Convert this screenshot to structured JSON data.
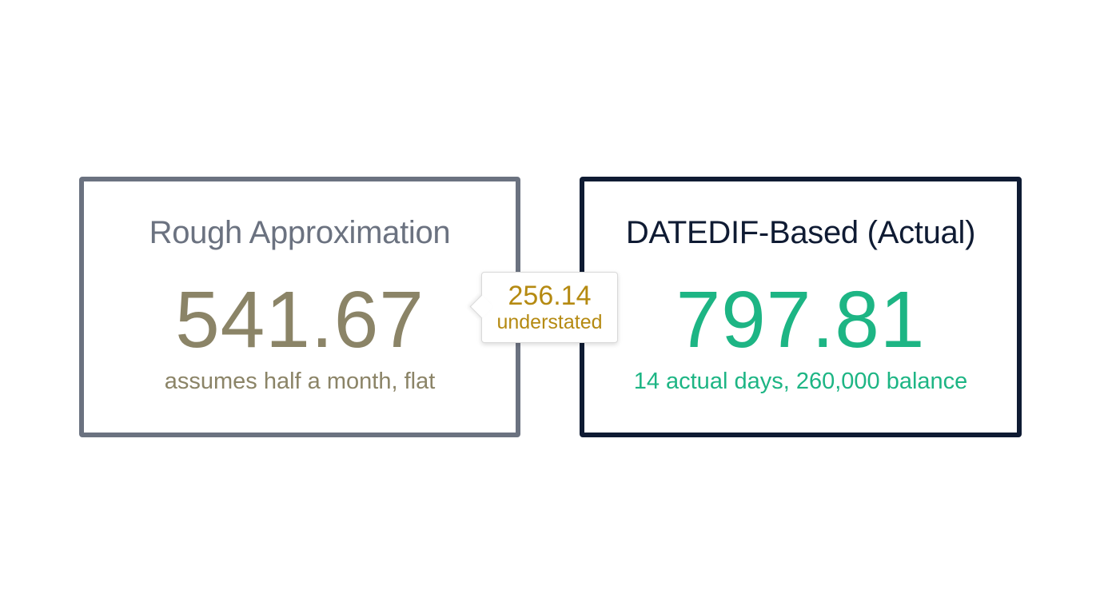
{
  "colors": {
    "approx_border": "#6b7280",
    "approx_title": "#6b7280",
    "approx_value": "#8b8467",
    "actual_border": "#0f1b33",
    "actual_title": "#0f1b33",
    "actual_value": "#1db584",
    "callout_text": "#b58a12"
  },
  "approx": {
    "title": "Rough Approximation",
    "value": "541.67",
    "subtitle": "assumes half a month, flat"
  },
  "actual": {
    "title": "DATEDIF-Based (Actual)",
    "value": "797.81",
    "subtitle": "14 actual days, 260,000 balance"
  },
  "difference": {
    "value": "256.14",
    "label": "understated"
  }
}
